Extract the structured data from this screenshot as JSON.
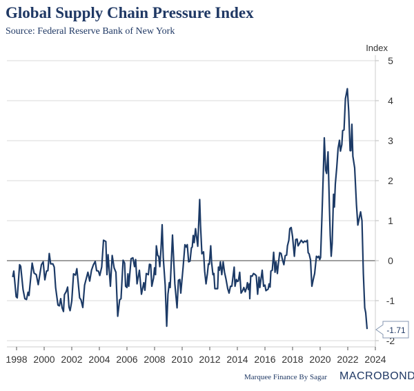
{
  "chart_data": {
    "type": "line",
    "title": "Global Supply Chain Pressure Index",
    "subtitle": "Source: Federal Reserve Bank of New York",
    "ylabel": "Index",
    "xlabel": "",
    "ylim": [
      -2,
      5
    ],
    "xlim": [
      1997.3,
      2024
    ],
    "yticks": [
      "5",
      "4",
      "3",
      "2",
      "1",
      "0",
      "-1",
      "-2"
    ],
    "ytick_values": [
      5,
      4,
      3,
      2,
      1,
      0,
      -1,
      -2
    ],
    "xticks": [
      "1998",
      "2000",
      "2002",
      "2004",
      "2006",
      "2008",
      "2010",
      "2012",
      "2014",
      "2016",
      "2018",
      "2020",
      "2022",
      "2024"
    ],
    "xtick_values": [
      1998,
      2000,
      2002,
      2004,
      2006,
      2008,
      2010,
      2012,
      2014,
      2016,
      2018,
      2020,
      2022,
      2024
    ],
    "grid": true,
    "last_value_label": "-1.71",
    "line_color": "#1c3a66",
    "series": [
      {
        "name": "Global Supply Chain Pressure Index",
        "points": [
          [
            1997.72,
            -0.41
          ],
          [
            1997.8,
            -0.26
          ],
          [
            1997.97,
            -0.9
          ],
          [
            1998.05,
            -0.93
          ],
          [
            1998.22,
            -0.1
          ],
          [
            1998.3,
            -0.14
          ],
          [
            1998.47,
            -0.72
          ],
          [
            1998.6,
            -0.95
          ],
          [
            1998.72,
            -0.97
          ],
          [
            1998.83,
            -0.79
          ],
          [
            1998.9,
            -0.87
          ],
          [
            1999.13,
            -0.06
          ],
          [
            1999.27,
            -0.31
          ],
          [
            1999.43,
            -0.35
          ],
          [
            1999.57,
            -0.6
          ],
          [
            1999.8,
            -0.1
          ],
          [
            1999.93,
            -0.03
          ],
          [
            2000.05,
            -0.48
          ],
          [
            2000.17,
            -0.26
          ],
          [
            2000.27,
            -0.25
          ],
          [
            2000.37,
            0.18
          ],
          [
            2000.47,
            -0.08
          ],
          [
            2000.63,
            -0.08
          ],
          [
            2000.73,
            -0.16
          ],
          [
            2000.83,
            -0.67
          ],
          [
            2001.0,
            -1.11
          ],
          [
            2001.1,
            -1.13
          ],
          [
            2001.2,
            -0.95
          ],
          [
            2001.3,
            -1.18
          ],
          [
            2001.4,
            -1.27
          ],
          [
            2001.47,
            -0.85
          ],
          [
            2001.6,
            -0.77
          ],
          [
            2001.7,
            -0.66
          ],
          [
            2001.8,
            -1.16
          ],
          [
            2001.88,
            -1.25
          ],
          [
            2002.0,
            -1.01
          ],
          [
            2002.13,
            -0.33
          ],
          [
            2002.27,
            -0.36
          ],
          [
            2002.37,
            -0.2
          ],
          [
            2002.57,
            -0.93
          ],
          [
            2002.67,
            -0.98
          ],
          [
            2002.8,
            -1.17
          ],
          [
            2002.93,
            -0.61
          ],
          [
            2003.17,
            -0.29
          ],
          [
            2003.3,
            -0.51
          ],
          [
            2003.43,
            -0.24
          ],
          [
            2003.57,
            -0.1
          ],
          [
            2003.7,
            -0.02
          ],
          [
            2003.8,
            -0.25
          ],
          [
            2003.93,
            -0.26
          ],
          [
            2004.03,
            -0.37
          ],
          [
            2004.17,
            -0.16
          ],
          [
            2004.3,
            0.51
          ],
          [
            2004.47,
            0.48
          ],
          [
            2004.55,
            -0.35
          ],
          [
            2004.63,
            0.15
          ],
          [
            2004.8,
            -0.64
          ],
          [
            2004.93,
            0.13
          ],
          [
            2005.07,
            -0.18
          ],
          [
            2005.2,
            -0.29
          ],
          [
            2005.33,
            -1.39
          ],
          [
            2005.47,
            -0.98
          ],
          [
            2005.57,
            -0.95
          ],
          [
            2005.72,
            0.01
          ],
          [
            2005.83,
            -0.06
          ],
          [
            2005.9,
            -0.64
          ],
          [
            2006.0,
            -0.67
          ],
          [
            2006.07,
            -0.33
          ],
          [
            2006.13,
            -0.64
          ],
          [
            2006.3,
            0.05
          ],
          [
            2006.43,
            0.07
          ],
          [
            2006.55,
            -0.15
          ],
          [
            2006.63,
            0.03
          ],
          [
            2006.73,
            -0.58
          ],
          [
            2006.9,
            -0.24
          ],
          [
            2007.05,
            -0.84
          ],
          [
            2007.22,
            -0.55
          ],
          [
            2007.3,
            -0.74
          ],
          [
            2007.4,
            -0.32
          ],
          [
            2007.55,
            -0.35
          ],
          [
            2007.63,
            -0.09
          ],
          [
            2007.72,
            -0.1
          ],
          [
            2007.8,
            -0.64
          ],
          [
            2007.93,
            -0.43
          ],
          [
            2008.0,
            -0.18
          ],
          [
            2008.07,
            -0.35
          ],
          [
            2008.13,
            0.37
          ],
          [
            2008.23,
            0.13
          ],
          [
            2008.3,
            0.11
          ],
          [
            2008.38,
            -0.15
          ],
          [
            2008.47,
            0.31
          ],
          [
            2008.55,
            0.9
          ],
          [
            2008.63,
            0.08
          ],
          [
            2008.77,
            -0.61
          ],
          [
            2008.88,
            -1.64
          ],
          [
            2008.97,
            -0.84
          ],
          [
            2009.07,
            -0.55
          ],
          [
            2009.13,
            -0.67
          ],
          [
            2009.3,
            0.64
          ],
          [
            2009.47,
            -0.58
          ],
          [
            2009.63,
            -1.18
          ],
          [
            2009.73,
            -0.49
          ],
          [
            2009.83,
            -0.47
          ],
          [
            2009.9,
            -0.81
          ],
          [
            2010.07,
            -0.16
          ],
          [
            2010.2,
            0.4
          ],
          [
            2010.3,
            0.34
          ],
          [
            2010.37,
            0.4
          ],
          [
            2010.47,
            -0.03
          ],
          [
            2010.57,
            -0.01
          ],
          [
            2010.67,
            0.32
          ],
          [
            2010.73,
            0.34
          ],
          [
            2010.8,
            0.63
          ],
          [
            2010.87,
            0.45
          ],
          [
            2010.97,
            0.8
          ],
          [
            2011.03,
            0.63
          ],
          [
            2011.13,
            0.36
          ],
          [
            2011.27,
            1.53
          ],
          [
            2011.33,
            0.89
          ],
          [
            2011.43,
            0.17
          ],
          [
            2011.55,
            0.22
          ],
          [
            2011.63,
            -0.26
          ],
          [
            2011.73,
            -0.58
          ],
          [
            2011.83,
            -0.32
          ],
          [
            2011.9,
            -0.08
          ],
          [
            2011.97,
            -0.09
          ],
          [
            2012.07,
            0.37
          ],
          [
            2012.13,
            -0.03
          ],
          [
            2012.23,
            -0.35
          ],
          [
            2012.3,
            -0.32
          ],
          [
            2012.37,
            -0.7
          ],
          [
            2012.57,
            -0.7
          ],
          [
            2012.63,
            -0.16
          ],
          [
            2012.7,
            -0.24
          ],
          [
            2012.77,
            -0.03
          ],
          [
            2012.87,
            -0.35
          ],
          [
            2012.97,
            -0.03
          ],
          [
            2013.07,
            -0.29
          ],
          [
            2013.17,
            -0.45
          ],
          [
            2013.3,
            -0.7
          ],
          [
            2013.4,
            -0.81
          ],
          [
            2013.5,
            -0.64
          ],
          [
            2013.6,
            -0.64
          ],
          [
            2013.77,
            -0.16
          ],
          [
            2013.83,
            -0.64
          ],
          [
            2013.93,
            -0.47
          ],
          [
            2014.0,
            -0.52
          ],
          [
            2014.07,
            -0.51
          ],
          [
            2014.17,
            -0.29
          ],
          [
            2014.27,
            -0.81
          ],
          [
            2014.38,
            -0.75
          ],
          [
            2014.47,
            -0.67
          ],
          [
            2014.57,
            -0.78
          ],
          [
            2014.67,
            -0.67
          ],
          [
            2014.73,
            -0.55
          ],
          [
            2014.8,
            -0.72
          ],
          [
            2014.87,
            -0.58
          ],
          [
            2014.9,
            -0.95
          ],
          [
            2014.97,
            -0.38
          ],
          [
            2015.07,
            -0.39
          ],
          [
            2015.17,
            -0.32
          ],
          [
            2015.3,
            -0.35
          ],
          [
            2015.37,
            -0.38
          ],
          [
            2015.47,
            -0.84
          ],
          [
            2015.57,
            -0.41
          ],
          [
            2015.63,
            -0.67
          ],
          [
            2015.8,
            -0.24
          ],
          [
            2015.9,
            -0.64
          ],
          [
            2016.0,
            -0.61
          ],
          [
            2016.07,
            -0.75
          ],
          [
            2016.23,
            -0.71
          ],
          [
            2016.3,
            -0.58
          ],
          [
            2016.37,
            -0.66
          ],
          [
            2016.43,
            -0.26
          ],
          [
            2016.53,
            -0.24
          ],
          [
            2016.63,
            0.21
          ],
          [
            2016.73,
            -0.29
          ],
          [
            2016.8,
            -0.03
          ],
          [
            2016.9,
            -0.32
          ],
          [
            2016.97,
            -0.08
          ],
          [
            2017.07,
            0.2
          ],
          [
            2017.17,
            0.18
          ],
          [
            2017.27,
            0.02
          ],
          [
            2017.37,
            -0.1
          ],
          [
            2017.47,
            0.13
          ],
          [
            2017.57,
            0.14
          ],
          [
            2017.63,
            0.37
          ],
          [
            2017.73,
            0.51
          ],
          [
            2017.8,
            0.8
          ],
          [
            2017.9,
            0.83
          ],
          [
            2018.0,
            0.6
          ],
          [
            2018.13,
            0.11
          ],
          [
            2018.23,
            0.53
          ],
          [
            2018.33,
            0.54
          ],
          [
            2018.4,
            0.37
          ],
          [
            2018.63,
            0.51
          ],
          [
            2018.77,
            0.45
          ],
          [
            2018.87,
            0.49
          ],
          [
            2018.97,
            0.47
          ],
          [
            2019.07,
            0.51
          ],
          [
            2019.13,
            0.2
          ],
          [
            2019.2,
            0.17
          ],
          [
            2019.3,
            0.02
          ],
          [
            2019.4,
            -0.64
          ],
          [
            2019.5,
            -0.47
          ],
          [
            2019.6,
            -0.32
          ],
          [
            2019.73,
            0.11
          ],
          [
            2019.83,
            0.08
          ],
          [
            2019.9,
            0.11
          ],
          [
            2019.97,
            0.03
          ],
          [
            2020.03,
            0.08
          ],
          [
            2020.13,
            1.11
          ],
          [
            2020.23,
            2.21
          ],
          [
            2020.3,
            3.07
          ],
          [
            2020.4,
            2.26
          ],
          [
            2020.47,
            2.18
          ],
          [
            2020.57,
            2.72
          ],
          [
            2020.67,
            1.34
          ],
          [
            2020.73,
            0.63
          ],
          [
            2020.8,
            0.11
          ],
          [
            2020.87,
            0.43
          ],
          [
            2020.97,
            1.66
          ],
          [
            2021.03,
            1.34
          ],
          [
            2021.1,
            1.92
          ],
          [
            2021.2,
            2.32
          ],
          [
            2021.3,
            2.81
          ],
          [
            2021.4,
            3.01
          ],
          [
            2021.47,
            2.74
          ],
          [
            2021.57,
            2.9
          ],
          [
            2021.63,
            3.25
          ],
          [
            2021.73,
            3.27
          ],
          [
            2021.83,
            4.05
          ],
          [
            2021.97,
            4.3
          ],
          [
            2022.07,
            3.73
          ],
          [
            2022.17,
            2.75
          ],
          [
            2022.23,
            2.75
          ],
          [
            2022.3,
            3.41
          ],
          [
            2022.37,
            2.61
          ],
          [
            2022.5,
            2.32
          ],
          [
            2022.63,
            1.4
          ],
          [
            2022.73,
            0.89
          ],
          [
            2022.83,
            1.06
          ],
          [
            2022.93,
            1.22
          ],
          [
            2023.03,
            1.0
          ],
          [
            2023.13,
            -0.32
          ],
          [
            2023.23,
            -1.18
          ],
          [
            2023.3,
            -1.3
          ],
          [
            2023.4,
            -1.71
          ]
        ]
      }
    ]
  },
  "footer": {
    "credit": "Marquee Finance By Sagar",
    "logo_text": "MACROBOND"
  },
  "colors": {
    "title": "#1f3864",
    "grid": "#d9d9d9",
    "zero_line": "#666666",
    "axis_text": "#333333"
  }
}
